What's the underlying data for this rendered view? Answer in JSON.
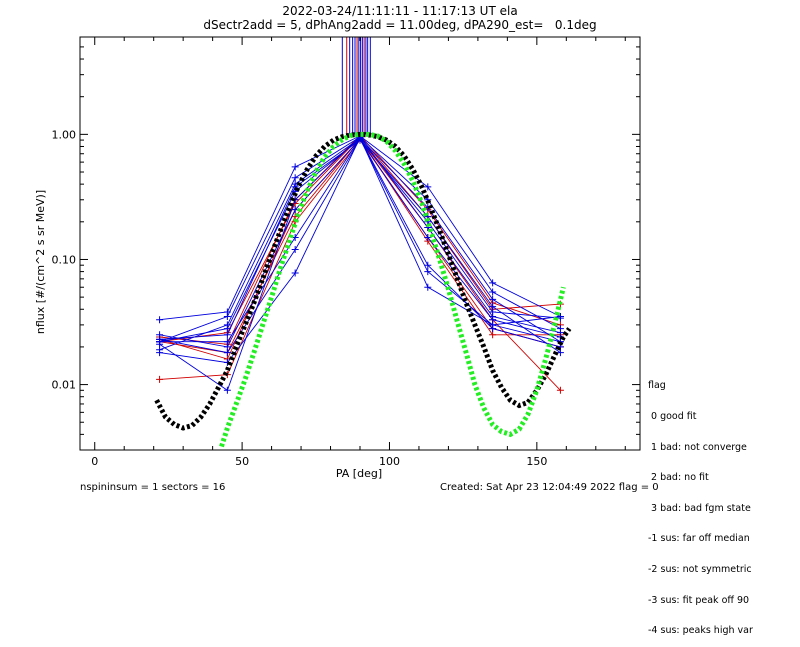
{
  "chart_data": {
    "type": "line",
    "title": "2022-03-24/11:11:11 - 11:17:13 UT ela",
    "subtitle": "dSectr2add = 5, dPhAng2add = 11.00deg, dPA290_est=   0.1deg",
    "xlabel": "PA [deg]",
    "ylabel": "nflux [#/(cm^2 s sr MeV)]",
    "xlim": [
      -5,
      185
    ],
    "ylim": [
      0.003,
      6.0
    ],
    "yscale": "log",
    "x_ticks": [
      0,
      50,
      100,
      150
    ],
    "y_ticks": [
      0.01,
      0.1,
      1.0
    ],
    "y_tick_labels": [
      "0.01",
      "0.10",
      "1.00"
    ],
    "grid": false,
    "colors": {
      "red": "#d00000",
      "blue": "#0000dd",
      "black": "#000000",
      "green": "#22ee22"
    },
    "pa_x": [
      22,
      45,
      68,
      90,
      113,
      135,
      158
    ],
    "red_series": [
      [
        0.022,
        0.026,
        0.28,
        0.95,
        0.22,
        0.04,
        0.044
      ],
      [
        0.011,
        0.012,
        0.2,
        0.9,
        0.15,
        0.028,
        0.02
      ],
      [
        0.024,
        0.021,
        0.3,
        0.98,
        0.25,
        0.045,
        0.03
      ],
      [
        0.023,
        0.016,
        0.25,
        0.92,
        0.18,
        0.033,
        0.009
      ],
      [
        0.022,
        0.018,
        0.22,
        0.93,
        0.14,
        0.025,
        0.025
      ]
    ],
    "blue_series": [
      [
        0.033,
        0.038,
        0.55,
        0.97,
        0.38,
        0.065,
        0.035
      ],
      [
        0.022,
        0.035,
        0.45,
        0.95,
        0.3,
        0.055,
        0.028
      ],
      [
        0.019,
        0.03,
        0.4,
        0.93,
        0.26,
        0.048,
        0.022
      ],
      [
        0.023,
        0.025,
        0.38,
        0.9,
        0.22,
        0.042,
        0.018
      ],
      [
        0.022,
        0.028,
        0.35,
        0.92,
        0.2,
        0.038,
        0.034
      ],
      [
        0.021,
        0.009,
        0.3,
        0.96,
        0.18,
        0.035,
        0.026
      ],
      [
        0.018,
        0.015,
        0.078,
        0.94,
        0.06,
        0.03,
        0.035
      ],
      [
        0.025,
        0.02,
        0.25,
        0.91,
        0.15,
        0.033,
        0.024
      ],
      [
        0.022,
        0.022,
        0.15,
        0.93,
        0.09,
        0.028,
        0.02
      ],
      [
        0.023,
        0.018,
        0.12,
        0.92,
        0.08,
        0.03,
        0.022
      ]
    ],
    "vertical_lines_x": [
      84,
      85.5,
      86.5,
      87.5,
      88.3,
      89,
      89.6,
      90.2,
      90.8,
      91.4,
      92,
      92.6,
      93.5
    ],
    "black_fit": {
      "x": [
        21,
        24,
        27,
        30,
        33,
        36,
        39,
        42,
        45,
        48,
        51,
        54,
        57,
        60,
        63,
        66,
        69,
        72,
        75,
        78,
        81,
        84,
        87,
        90,
        93,
        96,
        99,
        102,
        105,
        108,
        111,
        114,
        117,
        120,
        123,
        126,
        129,
        132,
        135,
        138,
        141,
        144,
        147,
        150,
        153,
        156,
        159,
        161
      ],
      "y": [
        0.0075,
        0.0055,
        0.0048,
        0.0045,
        0.0047,
        0.0055,
        0.007,
        0.0095,
        0.013,
        0.02,
        0.03,
        0.045,
        0.07,
        0.11,
        0.17,
        0.26,
        0.38,
        0.52,
        0.67,
        0.8,
        0.9,
        0.96,
        0.99,
        1.0,
        0.99,
        0.96,
        0.9,
        0.8,
        0.67,
        0.52,
        0.38,
        0.26,
        0.17,
        0.11,
        0.07,
        0.045,
        0.03,
        0.02,
        0.013,
        0.0095,
        0.0075,
        0.0068,
        0.0072,
        0.009,
        0.012,
        0.017,
        0.024,
        0.028
      ]
    },
    "green_fit": {
      "x": [
        43,
        45,
        48,
        51,
        54,
        57,
        60,
        63,
        66,
        69,
        72,
        75,
        78,
        81,
        84,
        87,
        90,
        93,
        96,
        99,
        102,
        105,
        108,
        111,
        114,
        117,
        120,
        123,
        126,
        129,
        132,
        135,
        138,
        141,
        144,
        147,
        150,
        153,
        156,
        159
      ],
      "y": [
        0.0032,
        0.0045,
        0.007,
        0.011,
        0.018,
        0.03,
        0.05,
        0.085,
        0.14,
        0.23,
        0.35,
        0.5,
        0.66,
        0.8,
        0.91,
        0.98,
        1.0,
        1.0,
        0.97,
        0.88,
        0.74,
        0.58,
        0.42,
        0.28,
        0.17,
        0.1,
        0.058,
        0.032,
        0.018,
        0.01,
        0.0065,
        0.0048,
        0.0042,
        0.004,
        0.0044,
        0.0058,
        0.009,
        0.016,
        0.03,
        0.06
      ]
    }
  },
  "legend": {
    "title": "flag",
    "items": [
      " 0 good fit",
      " 1 bad: not converge",
      " 2 bad: no fit",
      " 3 bad: bad fgm state",
      "-1 sus: far off median",
      "-2 sus: not symmetric",
      "-3 sus: fit peak off 90",
      "-4 sus: peaks high var"
    ]
  },
  "footer": {
    "left": "nspininsum =  1  sectors = 16",
    "right": "Created: Sat Apr 23 12:04:49 2022   flag = 0"
  }
}
